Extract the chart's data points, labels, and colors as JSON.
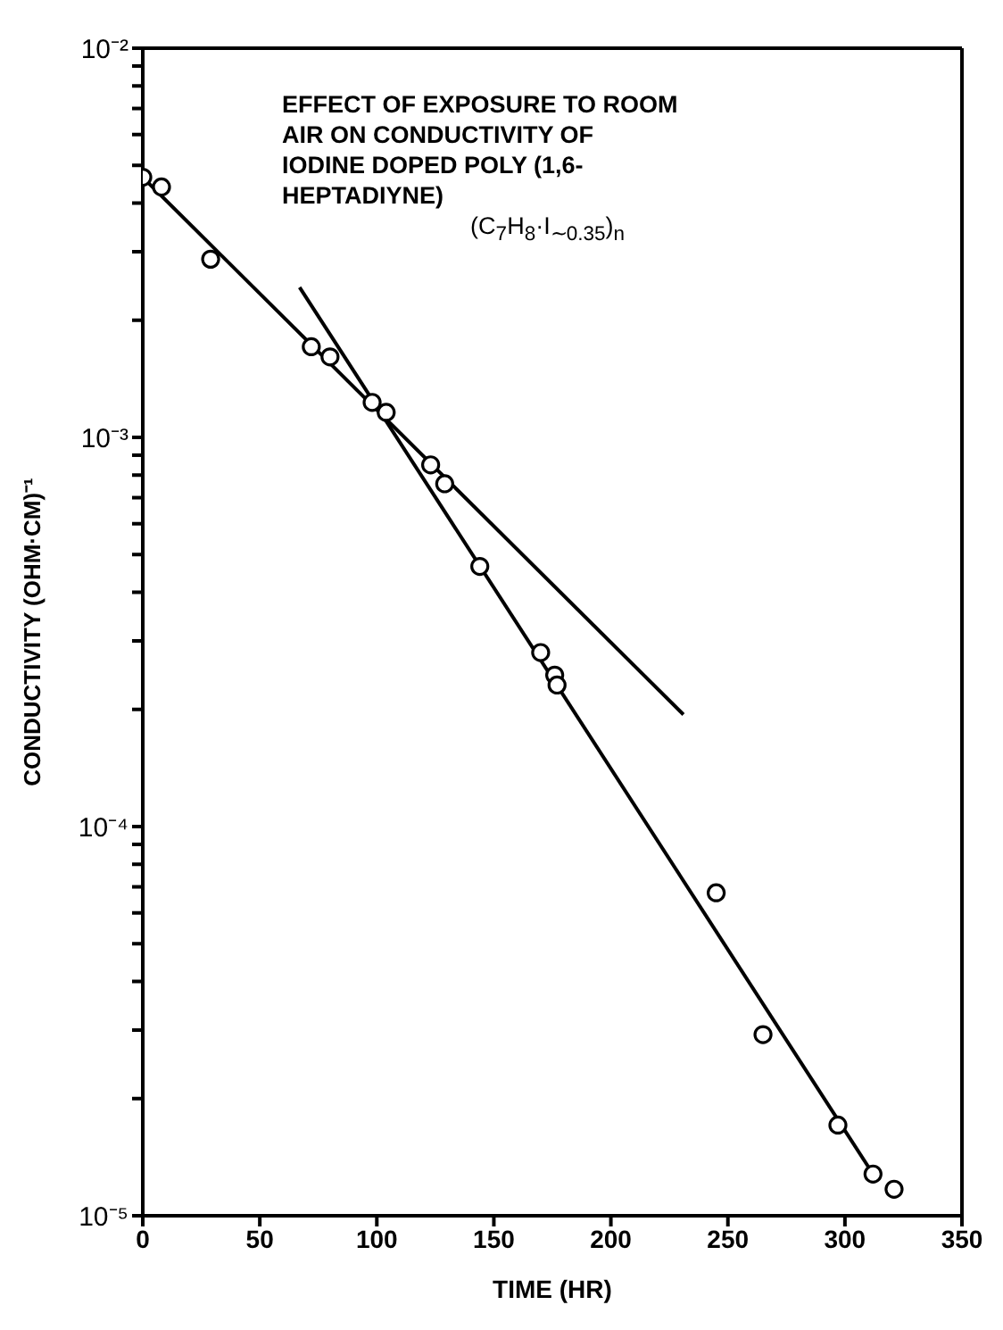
{
  "chart_data": {
    "type": "scatter",
    "title": "EFFECT OF EXPOSURE TO ROOM AIR ON CONDUCTIVITY OF IODINE DOPED POLY (1,6-HEPTADIYNE)",
    "annotations": [
      "(C$_{7}$H$_{8}$·I$_{∼0.35}$)$_{n}$"
    ],
    "xlabel": "TIME (HR)",
    "ylabel": "CONDUCTIVITY (OHM·CM)⁻¹",
    "series": [
      {
        "color": "#000000",
        "marker": "circle",
        "x": [
          0,
          8,
          29,
          72,
          80,
          98,
          104,
          123,
          129,
          144,
          170,
          176,
          177,
          245,
          265,
          297,
          312,
          321
        ],
        "values": [
          0.00466,
          0.0044,
          0.00287,
          0.00171,
          0.00161,
          0.00123,
          0.00116,
          0.00085,
          0.00076,
          0.000466,
          0.00028,
          0.000245,
          0.000231,
          6.76e-05,
          2.92e-05,
          1.71e-05,
          1.28e-05,
          1.17e-05
        ]
      },
      {
        "type": "line",
        "color": "#000000",
        "marker": "none",
        "x": [
          0,
          231
        ],
        "values": [
          0.00466,
          0.000194
        ]
      },
      {
        "type": "line",
        "color": "#000000",
        "marker": "none",
        "x": [
          67,
          312
        ],
        "values": [
          0.00243,
          1.28e-05
        ]
      }
    ],
    "log": "y",
    "grid": false,
    "xlim": [
      0,
      350
    ],
    "xticks": [
      0,
      50,
      100,
      150,
      200,
      250,
      300,
      350
    ],
    "ylim": [
      1e-05,
      0.01
    ],
    "yticks": [
      {
        "value": 1e-05,
        "label": "10⁻⁵"
      },
      {
        "value": 2e-05,
        "label": null
      },
      {
        "value": 3e-05,
        "label": null
      },
      {
        "value": 4e-05,
        "label": null
      },
      {
        "value": 5e-05,
        "label": null
      },
      {
        "value": 6e-05,
        "label": null
      },
      {
        "value": 7e-05,
        "label": null
      },
      {
        "value": 8e-05,
        "label": null
      },
      {
        "value": 9e-05,
        "label": null
      },
      {
        "value": 0.0001,
        "label": "10⁻⁴"
      },
      {
        "value": 0.0002,
        "label": null
      },
      {
        "value": 0.0003,
        "label": null
      },
      {
        "value": 0.0004,
        "label": null
      },
      {
        "value": 0.0005,
        "label": null
      },
      {
        "value": 0.0006,
        "label": null
      },
      {
        "value": 0.0007,
        "label": null
      },
      {
        "value": 0.0008,
        "label": null
      },
      {
        "value": 0.0009,
        "label": null
      },
      {
        "value": 0.001,
        "label": "10⁻³"
      },
      {
        "value": 0.002,
        "label": null
      },
      {
        "value": 0.003,
        "label": null
      },
      {
        "value": 0.004,
        "label": null
      },
      {
        "value": 0.005,
        "label": null
      },
      {
        "value": 0.006,
        "label": null
      },
      {
        "value": 0.007,
        "label": null
      },
      {
        "value": 0.008,
        "label": null
      },
      {
        "value": 0.009,
        "label": null
      },
      {
        "value": 0.01,
        "label": "10⁻²"
      }
    ]
  }
}
